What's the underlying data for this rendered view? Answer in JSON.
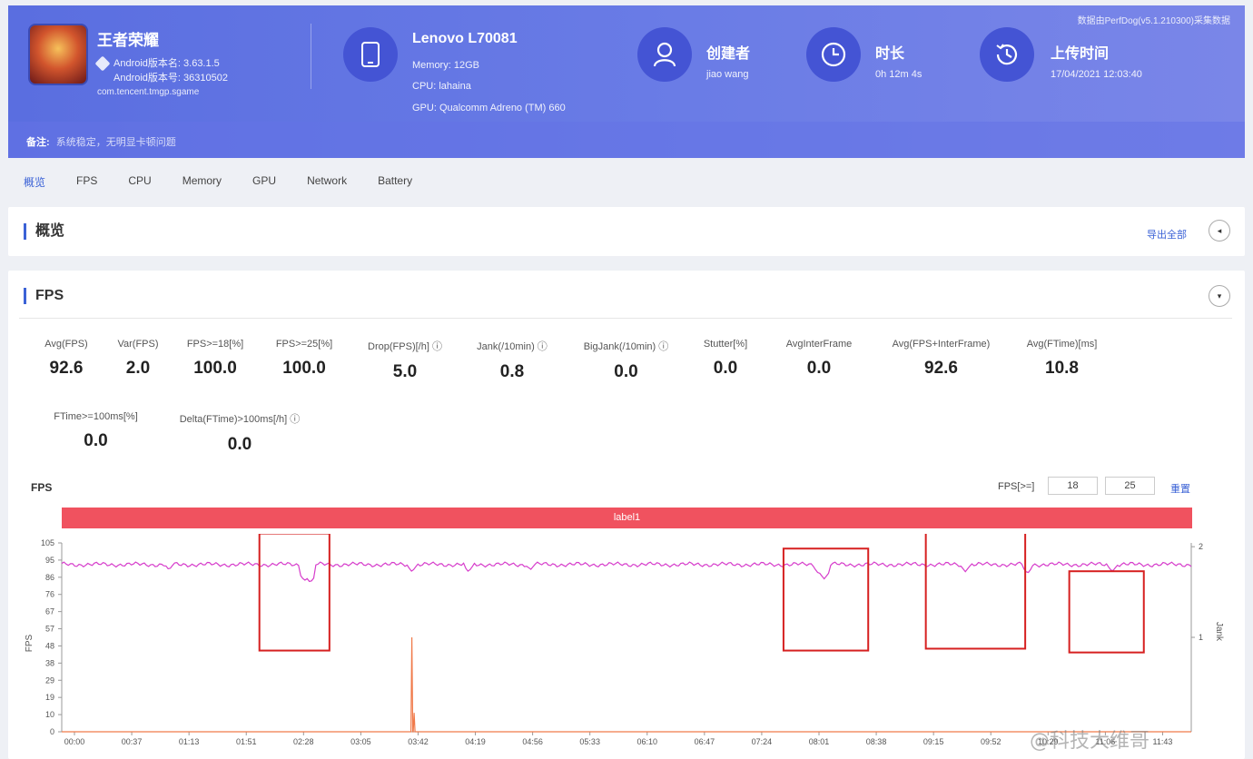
{
  "header": {
    "app": {
      "title": "王者荣耀",
      "android_version": "Android版本名: 3.63.1.5",
      "android_code": "Android版本号: 36310502",
      "package": "com.tencent.tmgp.sgame"
    },
    "device": {
      "name": "Lenovo L70081",
      "memory": "Memory: 12GB",
      "cpu": "CPU: lahaina",
      "gpu": "GPU: Qualcomm Adreno (TM) 660"
    },
    "creator": {
      "title": "创建者",
      "value": "jiao wang"
    },
    "duration": {
      "title": "时长",
      "value": "0h 12m 4s"
    },
    "upload": {
      "title": "上传时间",
      "value": "17/04/2021 12:03:40"
    },
    "top_note": "数据由PerfDog(v5.1.210300)采集数据",
    "remark_label": "备注:",
    "remark_value": "系统稳定，无明显卡顿问题"
  },
  "tabs": [
    "概览",
    "FPS",
    "CPU",
    "Memory",
    "GPU",
    "Network",
    "Battery"
  ],
  "overview_card": {
    "title": "概览",
    "export": "导出全部",
    "btn": "◂"
  },
  "fps_card": {
    "title": "FPS",
    "btn": "▾",
    "metrics_row1": [
      {
        "label": "Avg(FPS)",
        "value": "92.6"
      },
      {
        "label": "Var(FPS)",
        "value": "2.0"
      },
      {
        "label": "FPS>=18[%]",
        "value": "100.0"
      },
      {
        "label": "FPS>=25[%]",
        "value": "100.0"
      },
      {
        "label": "Drop(FPS)[/h] ⓘ",
        "value": "5.0"
      },
      {
        "label": "Jank(/10min) ⓘ",
        "value": "0.8"
      },
      {
        "label": "BigJank(/10min) ⓘ",
        "value": "0.0"
      },
      {
        "label": "Stutter[%]",
        "value": "0.0"
      },
      {
        "label": "AvgInterFrame",
        "value": "0.0"
      },
      {
        "label": "Avg(FPS+InterFrame)",
        "value": "92.6"
      },
      {
        "label": "Avg(FTime)[ms]",
        "value": "10.8"
      }
    ],
    "metrics_row2": [
      {
        "label": "FTime>=100ms[%]",
        "value": "0.0"
      },
      {
        "label": "Delta(FTime)>100ms[/h] ⓘ",
        "value": "0.0"
      }
    ]
  },
  "chart_controls": {
    "title": "FPS",
    "threshold_label": "FPS[>=]",
    "threshold_1": "18",
    "threshold_2": "25",
    "reset": "重置",
    "band_label": "label1"
  },
  "chart_data": {
    "type": "line",
    "title": "FPS",
    "ylabel": "FPS",
    "y2label": "Jank",
    "ylim": [
      0,
      105
    ],
    "y_ticks": [
      "105",
      "95",
      "86",
      "76",
      "67",
      "57",
      "48",
      "38",
      "29",
      "19",
      "10",
      "0"
    ],
    "y2_ticks": [
      "2",
      "1"
    ],
    "x_ticks": [
      "00:00",
      "00:37",
      "01:13",
      "01:51",
      "02:28",
      "03:05",
      "03:42",
      "04:19",
      "04:56",
      "05:33",
      "06:10",
      "06:47",
      "07:24",
      "08:01",
      "08:38",
      "09:15",
      "09:52",
      "10:29",
      "11:06",
      "11:43"
    ],
    "series": [
      {
        "color": "#d63ccb",
        "baseline": 93,
        "dips": [
          [
            0.095,
            90
          ],
          [
            0.215,
            84
          ],
          [
            0.22,
            83
          ],
          [
            0.31,
            89
          ],
          [
            0.36,
            89
          ],
          [
            0.415,
            90
          ],
          [
            0.67,
            88
          ],
          [
            0.675,
            85
          ],
          [
            0.8,
            89
          ],
          [
            0.855,
            88
          ],
          [
            0.93,
            89
          ]
        ]
      },
      {
        "color": "#f07a4a",
        "spikes": [
          [
            0.31,
            1
          ],
          [
            0.312,
            0.2
          ]
        ]
      }
    ],
    "highlight_boxes": 4
  },
  "colors": {
    "accent": "#3b62d6",
    "header_start": "#5a6ee0",
    "band": "#f0525f",
    "line_fps": "#d63ccb",
    "line_jank": "#f07a4a",
    "highlight": "#d62020"
  },
  "watermark": "@科技大维哥"
}
